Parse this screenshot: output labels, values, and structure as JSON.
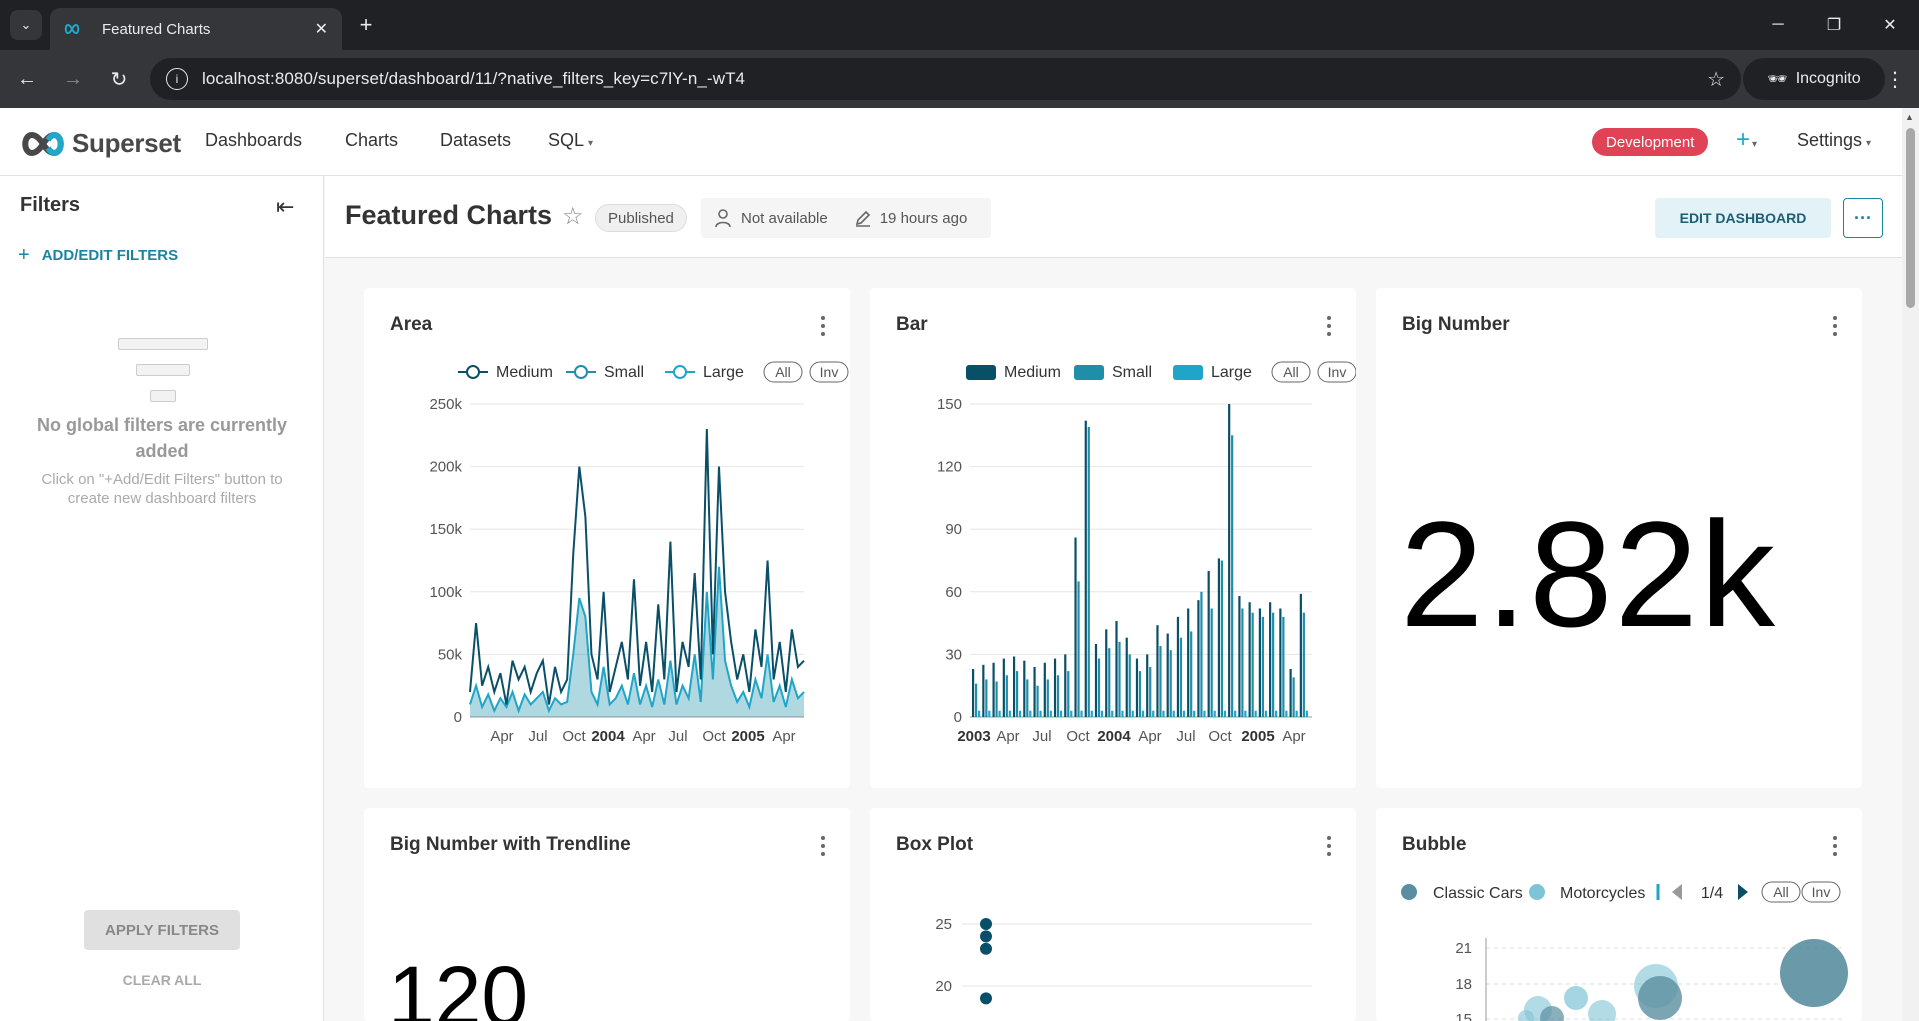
{
  "browser": {
    "tab_title": "Featured Charts",
    "url": "localhost:8080/superset/dashboard/11/?native_filters_key=c7lY-n_-wT4",
    "incognito_label": "Incognito"
  },
  "nav": {
    "brand": "Superset",
    "menu": [
      "Dashboards",
      "Charts",
      "Datasets",
      "SQL"
    ],
    "env_badge": "Development",
    "settings": "Settings",
    "accent_color": "#20a7c9",
    "env_color": "#e04355"
  },
  "filters": {
    "title": "Filters",
    "add_edit": "ADD/EDIT FILTERS",
    "empty_title": "No global filters are currently added",
    "empty_desc": "Click on \"+Add/Edit Filters\" button to create new dashboard filters",
    "apply": "APPLY FILTERS",
    "clear": "CLEAR ALL"
  },
  "dashboard": {
    "title": "Featured Charts",
    "status": "Published",
    "owner": "Not available",
    "modified": "19 hours ago",
    "edit_label": "EDIT DASHBOARD",
    "more_label": "···"
  },
  "legend_controls": {
    "all": "All",
    "inv": "Inv"
  },
  "colors": {
    "medium": "#0a4f68",
    "small": "#1e8ea9",
    "large": "#1fa5c9",
    "classic": "#5a8ea0",
    "moto": "#7fc3d6"
  },
  "charts": {
    "area": {
      "title": "Area"
    },
    "bar": {
      "title": "Bar"
    },
    "bignumber": {
      "title": "Big Number",
      "value": "2.82k"
    },
    "trend": {
      "title": "Big Number with Trendline",
      "value": "120"
    },
    "box": {
      "title": "Box Plot"
    },
    "bubble": {
      "title": "Bubble",
      "pager": "1/4"
    }
  },
  "chart_data": [
    {
      "type": "area",
      "title": "Area",
      "series": [
        {
          "name": "Medium"
        },
        {
          "name": "Small"
        },
        {
          "name": "Large"
        }
      ],
      "yticks": [
        "0",
        "50k",
        "100k",
        "150k",
        "200k",
        "250k"
      ],
      "ylim": [
        0,
        250000
      ],
      "xticks": [
        "Apr",
        "Jul",
        "Oct",
        "2004",
        "Apr",
        "Jul",
        "Oct",
        "2005",
        "Apr"
      ],
      "medium_values": [
        20000,
        75000,
        25000,
        40000,
        20000,
        35000,
        10000,
        45000,
        30000,
        40000,
        20000,
        35000,
        45000,
        10000,
        40000,
        20000,
        30000,
        130000,
        200000,
        160000,
        50000,
        30000,
        100000,
        20000,
        40000,
        60000,
        30000,
        110000,
        25000,
        60000,
        20000,
        90000,
        30000,
        140000,
        20000,
        60000,
        40000,
        115000,
        30000,
        230000,
        50000,
        200000,
        100000,
        60000,
        30000,
        50000,
        20000,
        70000,
        40000,
        125000,
        30000,
        60000,
        20000,
        70000,
        40000,
        45000
      ],
      "small_values": [
        10000,
        25000,
        8000,
        18000,
        5000,
        15000,
        8000,
        20000,
        5000,
        18000,
        10000,
        15000,
        20000,
        5000,
        15000,
        10000,
        12000,
        50000,
        95000,
        80000,
        20000,
        10000,
        40000,
        10000,
        15000,
        25000,
        10000,
        35000,
        10000,
        25000,
        8000,
        30000,
        10000,
        45000,
        10000,
        25000,
        15000,
        50000,
        12000,
        100000,
        30000,
        120000,
        45000,
        25000,
        12000,
        20000,
        8000,
        30000,
        15000,
        50000,
        12000,
        25000,
        8000,
        30000,
        15000,
        20000
      ]
    },
    {
      "type": "bar",
      "title": "Bar",
      "series": [
        {
          "name": "Medium"
        },
        {
          "name": "Small"
        },
        {
          "name": "Large"
        }
      ],
      "yticks": [
        "0",
        "30",
        "60",
        "90",
        "120",
        "150"
      ],
      "ylim": [
        0,
        150
      ],
      "xticks": [
        "2003",
        "Apr",
        "Jul",
        "Oct",
        "2004",
        "Apr",
        "Jul",
        "Oct",
        "2005",
        "Apr"
      ],
      "medium_values": [
        23,
        25,
        26,
        28,
        29,
        27,
        24,
        26,
        28,
        30,
        86,
        142,
        35,
        42,
        46,
        38,
        28,
        30,
        44,
        40,
        48,
        52,
        56,
        70,
        76,
        150,
        58,
        55,
        52,
        55,
        52,
        23,
        59
      ],
      "small_values": [
        16,
        18,
        17,
        20,
        22,
        18,
        15,
        18,
        20,
        22,
        65,
        139,
        28,
        33,
        36,
        30,
        22,
        24,
        34,
        32,
        38,
        41,
        60,
        52,
        75,
        135,
        52,
        50,
        48,
        50,
        48,
        19,
        50
      ]
    },
    {
      "type": "scatter",
      "title": "Box Plot",
      "yticks": [
        "20",
        "25"
      ],
      "points": [
        25,
        24,
        23,
        19
      ]
    },
    {
      "type": "scatter",
      "title": "Bubble",
      "series": [
        {
          "name": "Classic Cars"
        },
        {
          "name": "Motorcycles"
        }
      ],
      "yticks": [
        "15",
        "18",
        "21"
      ]
    }
  ]
}
